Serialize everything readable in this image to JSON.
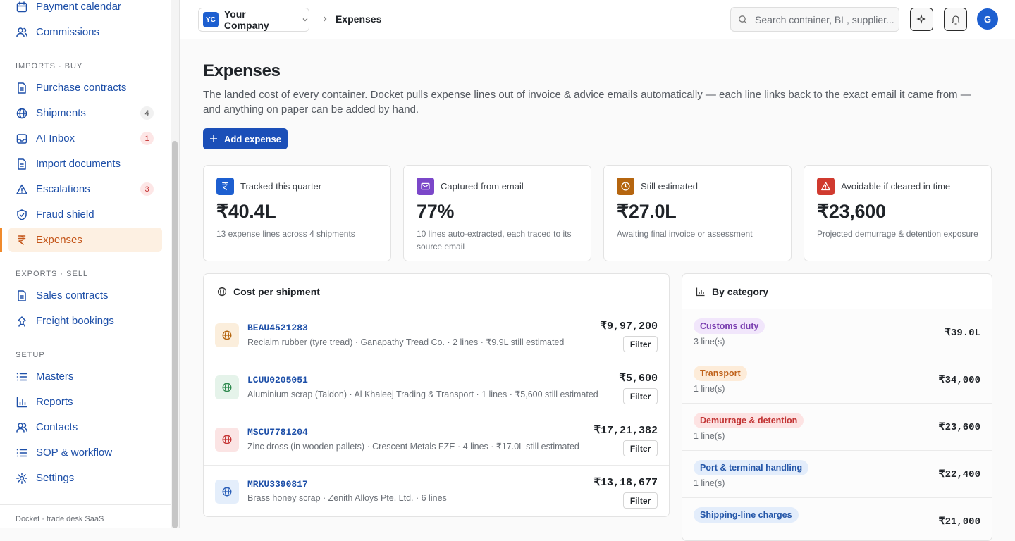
{
  "sidebar": {
    "items": [
      {
        "label": "Payment calendar"
      },
      {
        "label": "Commissions"
      }
    ],
    "sections": [
      {
        "title": "IMPORTS · BUY",
        "items": [
          {
            "label": "Purchase contracts"
          },
          {
            "label": "Shipments",
            "badge": 4,
            "badge_tone": "gray"
          },
          {
            "label": "AI Inbox",
            "badge": 1,
            "badge_tone": "red"
          },
          {
            "label": "Import documents"
          },
          {
            "label": "Escalations",
            "badge": 3,
            "badge_tone": "red"
          },
          {
            "label": "Fraud shield"
          },
          {
            "label": "Expenses",
            "active": true
          }
        ]
      },
      {
        "title": "EXPORTS · SELL",
        "items": [
          {
            "label": "Sales contracts"
          },
          {
            "label": "Freight bookings"
          }
        ]
      },
      {
        "title": "SETUP",
        "items": [
          {
            "label": "Masters"
          },
          {
            "label": "Reports"
          },
          {
            "label": "Contacts"
          },
          {
            "label": "SOP & workflow"
          },
          {
            "label": "Settings"
          }
        ]
      }
    ],
    "footer": "Docket · trade desk SaaS"
  },
  "header": {
    "company_initials": "YC",
    "company": "Your Company",
    "breadcrumb": "Expenses",
    "search_placeholder": "Search container, BL, supplier...",
    "avatar": "G"
  },
  "page": {
    "title": "Expenses",
    "description": "The landed cost of every container. Docket pulls expense lines out of invoice & advice emails automatically — each line links back to the exact email it came from — and anything on paper can be added by hand.",
    "add_button": "Add expense"
  },
  "stats": [
    {
      "label": "Tracked this quarter",
      "value": "₹40.4L",
      "note": "13 expense lines across 4 shipments"
    },
    {
      "label": "Captured from email",
      "value": "77%",
      "note": "10 lines auto-extracted, each traced to its source email"
    },
    {
      "label": "Still estimated",
      "value": "₹27.0L",
      "note": "Awaiting final invoice or assessment"
    },
    {
      "label": "Avoidable if cleared in time",
      "value": "₹23,600",
      "note": "Projected demurrage & detention exposure"
    }
  ],
  "shipments": {
    "title": "Cost per shipment",
    "filter_label": "Filter",
    "rows": [
      {
        "container": "BEAU4521283",
        "description": "Reclaim rubber (tyre tread) · Ganapathy Tread Co. · 2 lines · ₹9.9L still estimated",
        "amount": "₹9,97,200"
      },
      {
        "container": "LCUU0205051",
        "description": "Aluminium scrap (Taldon) · Al Khaleej Trading & Transport · 1 lines · ₹5,600 still estimated",
        "amount": "₹5,600"
      },
      {
        "container": "MSCU7781204",
        "description": "Zinc dross (in wooden pallets) · Crescent Metals FZE · 4 lines · ₹17.0L still estimated",
        "amount": "₹17,21,382"
      },
      {
        "container": "MRKU3390817",
        "description": "Brass honey scrap · Zenith Alloys Pte. Ltd. · 6 lines",
        "amount": "₹13,18,677"
      }
    ]
  },
  "categories": {
    "title": "By category",
    "rows": [
      {
        "name": "Customs duty",
        "count": "3 line(s)",
        "amount": "₹39.0L"
      },
      {
        "name": "Transport",
        "count": "1 line(s)",
        "amount": "₹34,000"
      },
      {
        "name": "Demurrage & detention",
        "count": "1 line(s)",
        "amount": "₹23,600"
      },
      {
        "name": "Port & terminal handling",
        "count": "1 line(s)",
        "amount": "₹22,400"
      },
      {
        "name": "Shipping-line charges",
        "amount": "₹21,000"
      }
    ]
  }
}
